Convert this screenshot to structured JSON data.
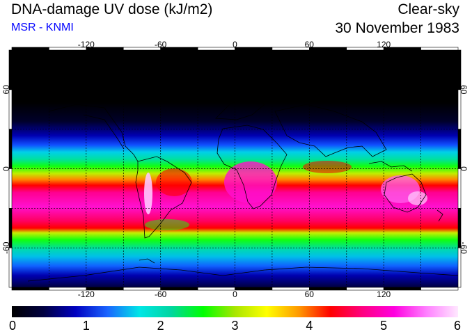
{
  "header": {
    "title": "DNA-damage UV dose (kJ/m2)",
    "subtitle": "MSR - KNMI",
    "sky_condition": "Clear-sky",
    "date": "30 November 1983"
  },
  "colors": {
    "subtitle": "#0000ff",
    "scale": [
      "#000000",
      "#000040",
      "#0000c0",
      "#1a64ff",
      "#00e6e6",
      "#00d6a0",
      "#00ff00",
      "#a8e600",
      "#ffff00",
      "#ff9900",
      "#ff0000",
      "#ff0080",
      "#ff00e0",
      "#ff80ff",
      "#ffe8ff"
    ]
  },
  "map": {
    "longitude_ticks": [
      "-120",
      "-60",
      "0",
      "60",
      "120"
    ],
    "latitude_ticks": [
      "60",
      "0",
      "-60"
    ],
    "gridlines": "dashed"
  },
  "colorbar": {
    "labels": [
      "0",
      "1",
      "2",
      "3",
      "4",
      "5",
      "6"
    ],
    "min": 0,
    "max": 6
  }
}
